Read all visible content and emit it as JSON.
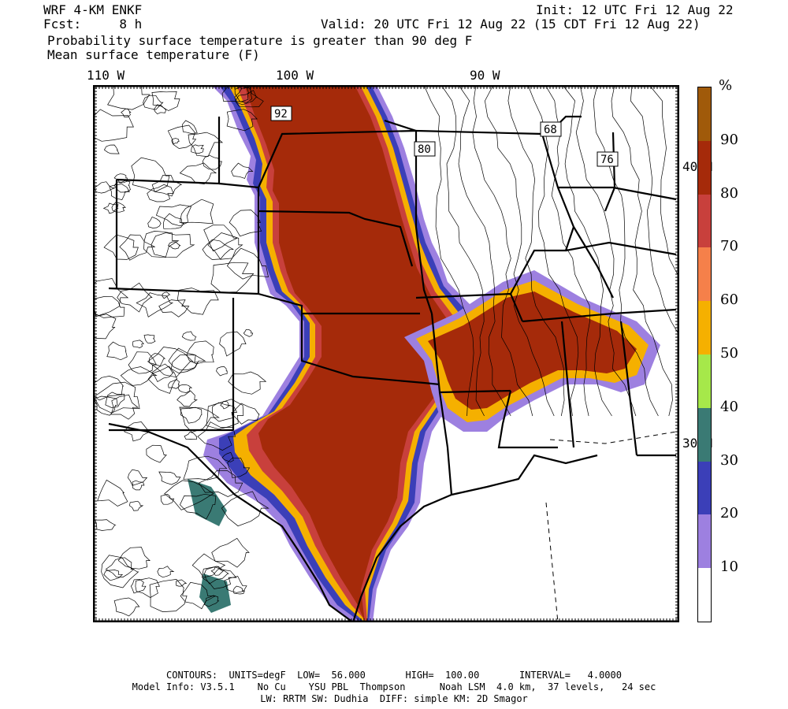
{
  "header": {
    "model": "WRF 4-KM ENKF",
    "fcst_label": "Fcst:",
    "fcst_value": "8 h",
    "init": "Init: 12 UTC Fri 12 Aug 22",
    "valid": "Valid: 20 UTC Fri 12 Aug 22 (15 CDT Fri 12 Aug 22)",
    "field1": "Probability surface temperature is greater than 90 deg F",
    "field2": "Mean surface temperature (F)"
  },
  "longitude_labels": [
    "110 W",
    "100 W",
    "90 W"
  ],
  "latitude_labels": [
    "40 N",
    "30 N"
  ],
  "contour_labels": [
    "92",
    "80",
    "68",
    "76"
  ],
  "colorbar": {
    "unit": "%",
    "levels": [
      "10",
      "20",
      "30",
      "40",
      "50",
      "60",
      "70",
      "80",
      "90"
    ],
    "colors": [
      "#ffffff",
      "#9d80e0",
      "#3b3fb8",
      "#3a7a74",
      "#a6e84a",
      "#f5b000",
      "#f5804a",
      "#c8403c",
      "#a52a0a",
      "#a05a0a"
    ]
  },
  "footer": {
    "line1": "CONTOURS:  UNITS=degF  LOW=  56.000       HIGH=  100.00       INTERVAL=   4.0000",
    "line2": "Model Info: V3.5.1    No Cu    YSU PBL  Thompson      Noah LSM  4.0 km,  37 levels,   24 sec",
    "line3": "LW: RRTM SW: Dudhia  DIFF: simple KM: 2D Smagor"
  }
}
